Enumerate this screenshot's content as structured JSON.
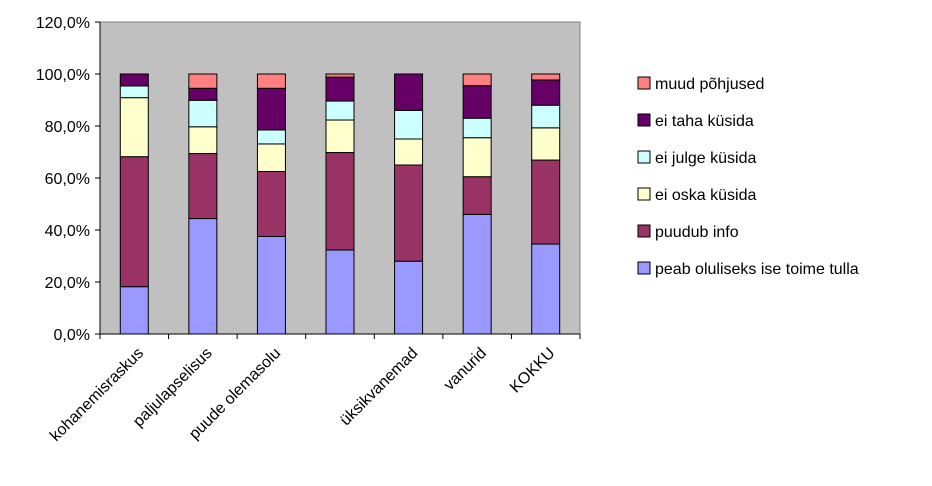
{
  "chart_data": {
    "type": "bar",
    "stacked": true,
    "percent_axis": true,
    "ylim": [
      0,
      120
    ],
    "ytick_labels": [
      "0,0%",
      "20,0%",
      "40,0%",
      "60,0%",
      "80,0%",
      "100,0%",
      "120,0%"
    ],
    "categories": [
      "kohanemisraskus",
      "paljulapselisus",
      "puude olemasolu",
      "",
      "üksikvanemad",
      "vanurid",
      "KOKKU"
    ],
    "legend_position": "right",
    "grid": false,
    "plot_background": "#c0c0c0",
    "series": [
      {
        "name": "peab oluliseks ise toime tulla",
        "color": "#9999ff",
        "values": [
          18.2,
          44.4,
          37.5,
          32.3,
          28.0,
          46.0,
          34.6
        ]
      },
      {
        "name": "puudub info",
        "color": "#993366",
        "values": [
          50.0,
          25.0,
          25.0,
          37.5,
          37.0,
          14.5,
          32.3
        ]
      },
      {
        "name": "ei oska küsida",
        "color": "#ffffcc",
        "values": [
          22.7,
          10.3,
          10.6,
          12.5,
          10.0,
          15.0,
          12.4
        ]
      },
      {
        "name": "ei julge küsida",
        "color": "#ccffff",
        "values": [
          4.5,
          10.2,
          5.4,
          7.3,
          11.0,
          7.5,
          8.7
        ]
      },
      {
        "name": "ei taha küsida",
        "color": "#660066",
        "values": [
          4.6,
          4.6,
          16.0,
          9.2,
          14.0,
          12.5,
          9.7
        ]
      },
      {
        "name": "muud põhjused",
        "color": "#ff8080",
        "values": [
          0.0,
          5.5,
          5.5,
          1.2,
          0.0,
          4.5,
          2.3
        ]
      }
    ]
  }
}
